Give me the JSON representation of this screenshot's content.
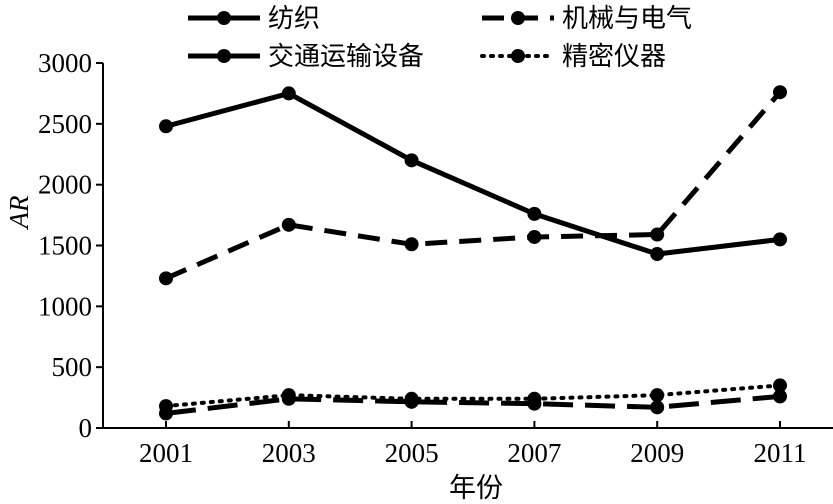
{
  "chart_data": {
    "type": "line",
    "xlabel": "年份",
    "ylabel": "AR",
    "x": [
      2001,
      2003,
      2005,
      2007,
      2009,
      2011
    ],
    "xticks": [
      "2001",
      "2003",
      "2005",
      "2007",
      "2009",
      "2011"
    ],
    "ylim": [
      0,
      3000
    ],
    "yticks": [
      "0",
      "500",
      "1000",
      "1500",
      "2000",
      "2500",
      "3000"
    ],
    "grid": false,
    "legend_position": "top",
    "series": [
      {
        "name": "纺织",
        "style": "solid",
        "color": "#000000",
        "values": [
          2480,
          2750,
          2200,
          1760,
          1430,
          1550
        ]
      },
      {
        "name": "机械与电气",
        "style": "dashed",
        "color": "#000000",
        "values": [
          1230,
          1670,
          1510,
          1570,
          1590,
          2760
        ]
      },
      {
        "name": "交通运输设备",
        "style": "longdash",
        "color": "#000000",
        "values": [
          120,
          240,
          215,
          200,
          170,
          260
        ]
      },
      {
        "name": "精密仪器",
        "style": "dotted",
        "color": "#000000",
        "values": [
          180,
          270,
          240,
          240,
          270,
          350
        ]
      }
    ]
  }
}
